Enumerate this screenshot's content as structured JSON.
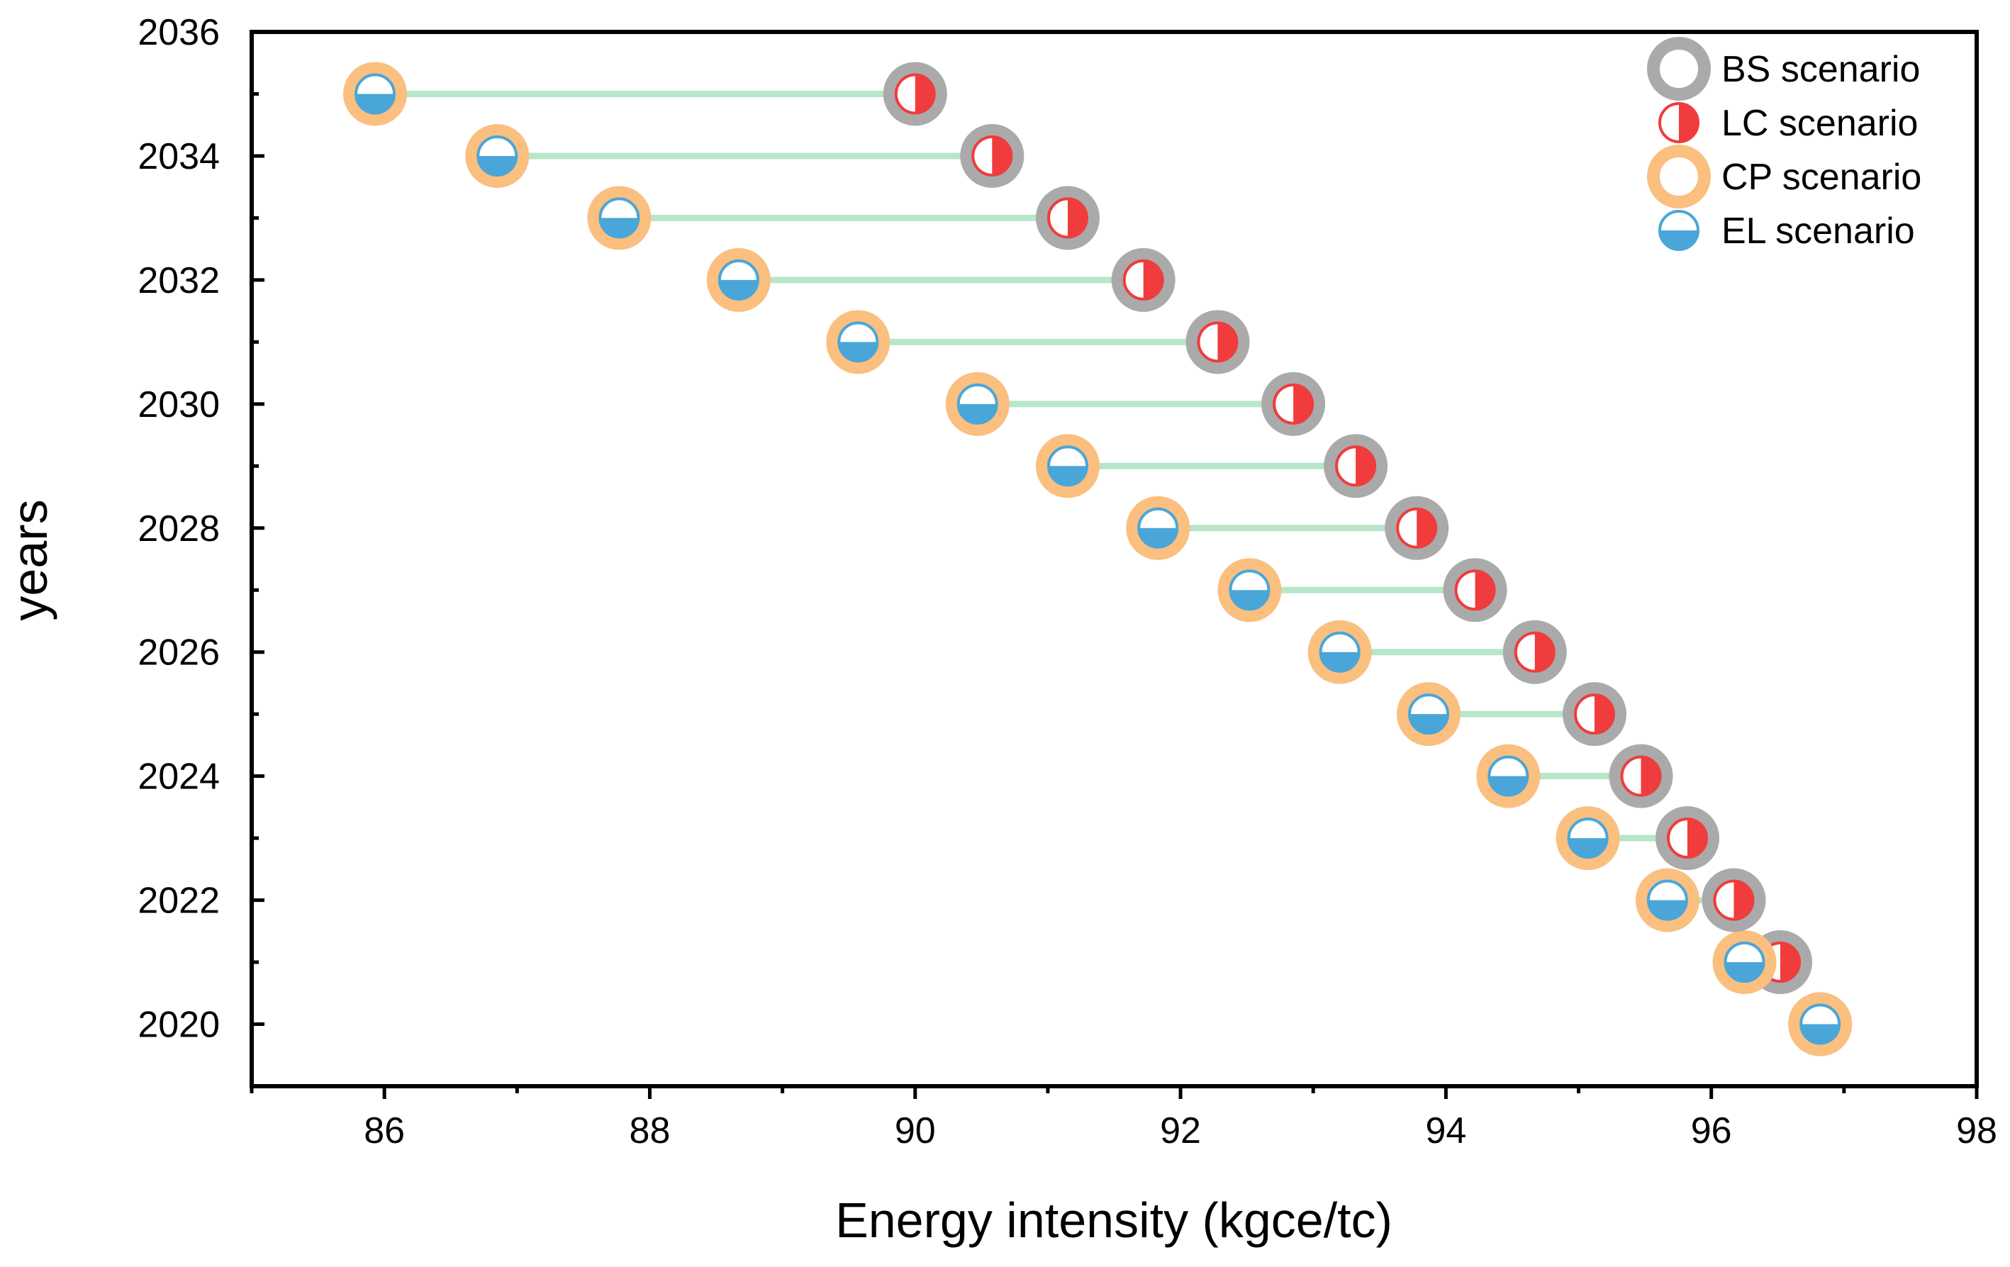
{
  "chart_data": {
    "type": "scatter",
    "xlabel": "Energy intensity (kgce/tc)",
    "ylabel": "years",
    "xlim": [
      85,
      98
    ],
    "ylim": [
      2019,
      2036
    ],
    "x_ticks": [
      86,
      88,
      90,
      92,
      94,
      96,
      98
    ],
    "y_ticks": [
      2020,
      2022,
      2024,
      2026,
      2028,
      2030,
      2032,
      2034,
      2036
    ],
    "years": [
      2020,
      2021,
      2022,
      2023,
      2024,
      2025,
      2026,
      2027,
      2028,
      2029,
      2030,
      2031,
      2032,
      2033,
      2034,
      2035
    ],
    "series": [
      {
        "name": "BS scenario",
        "color": "#aaaaaa",
        "values": [
          96.82,
          96.52,
          96.17,
          95.82,
          95.47,
          95.12,
          94.67,
          94.22,
          93.78,
          93.32,
          92.85,
          92.28,
          91.72,
          91.15,
          90.58,
          90.0
        ]
      },
      {
        "name": "LC scenario",
        "color": "#f03c3c",
        "values": [
          96.82,
          96.52,
          96.17,
          95.82,
          95.47,
          95.12,
          94.67,
          94.22,
          93.78,
          93.32,
          92.85,
          92.28,
          91.72,
          91.15,
          90.58,
          90.0
        ]
      },
      {
        "name": "CP scenario",
        "color": "#fbbf80",
        "values": [
          96.82,
          96.25,
          95.67,
          95.07,
          94.47,
          93.87,
          93.2,
          92.52,
          91.83,
          91.15,
          90.47,
          89.57,
          88.67,
          87.77,
          86.85,
          85.93
        ]
      },
      {
        "name": "EL scenario",
        "color": "#4aa6d8",
        "values": [
          96.82,
          96.25,
          95.67,
          95.07,
          94.47,
          93.87,
          93.2,
          92.52,
          91.83,
          91.15,
          90.47,
          89.57,
          88.67,
          87.77,
          86.85,
          85.93
        ]
      }
    ],
    "connector_color": "#b8e6c8",
    "legend_position": "top-right"
  }
}
